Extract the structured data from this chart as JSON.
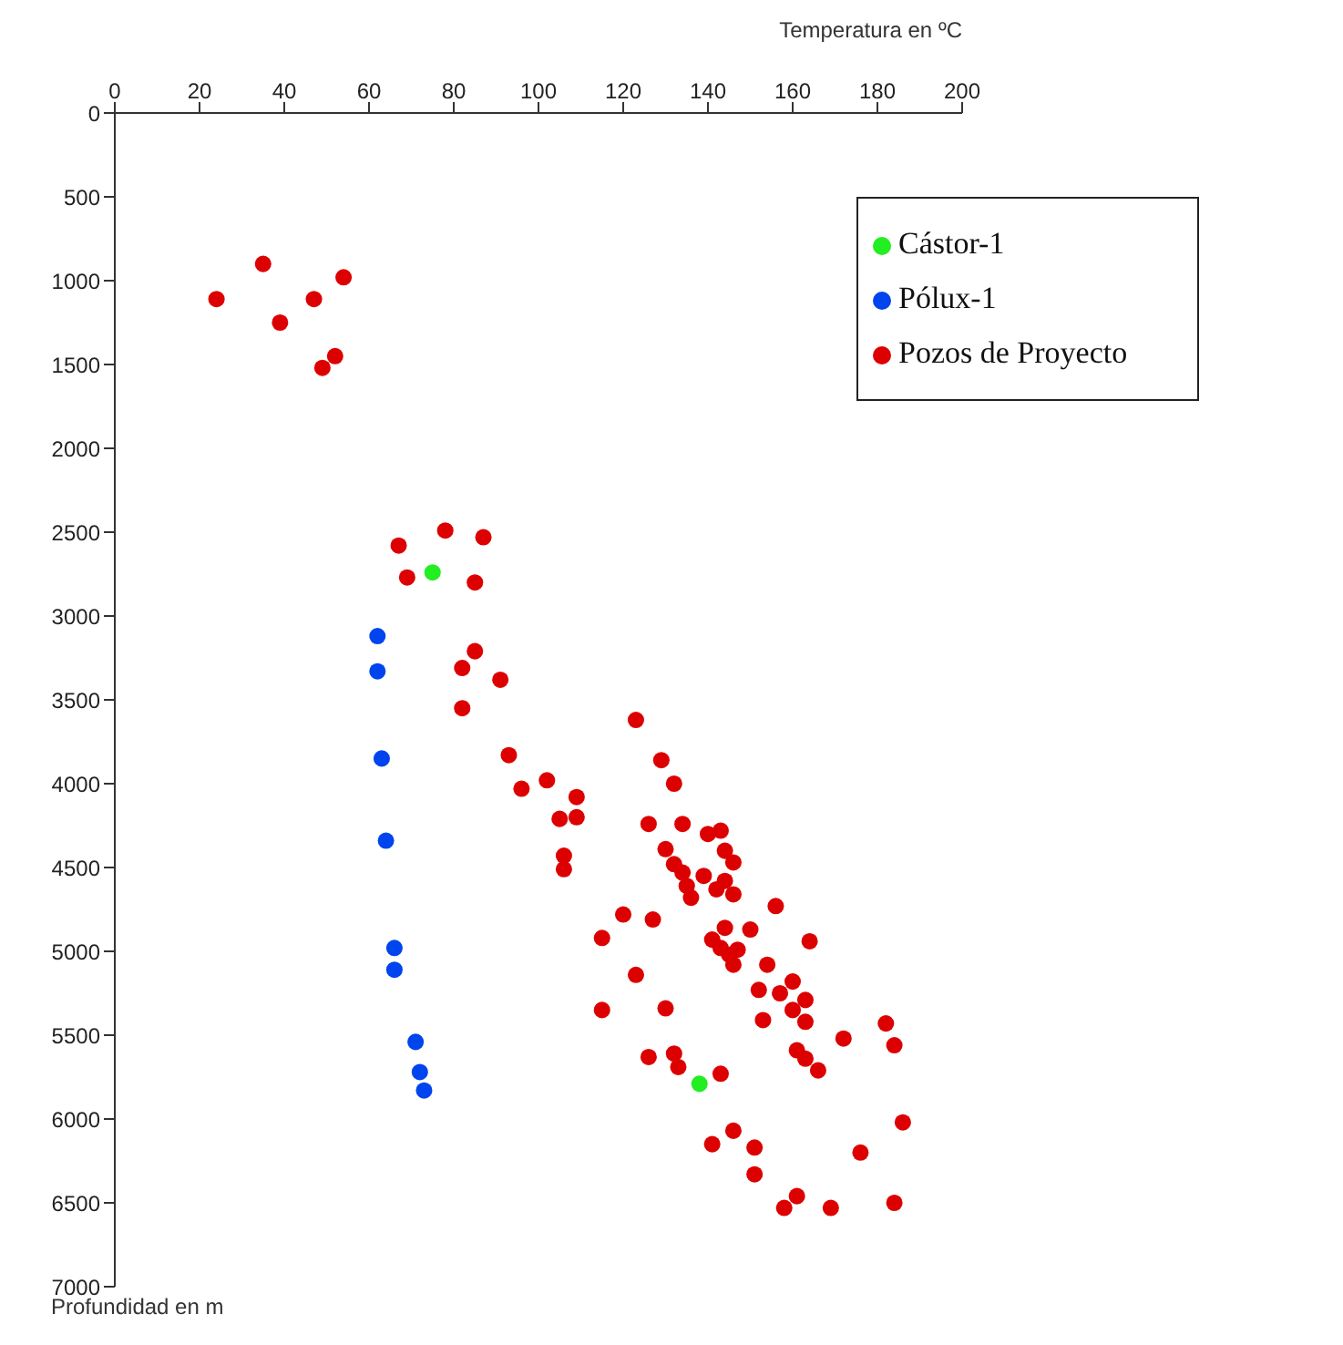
{
  "chart_data": {
    "type": "scatter",
    "xlabel": "Temperatura en ºC",
    "ylabel": "Profundidad en m",
    "xlim": [
      0,
      200
    ],
    "xticks": [
      0,
      20,
      40,
      60,
      80,
      100,
      120,
      140,
      160,
      180,
      200
    ],
    "ylim": [
      7000,
      0
    ],
    "yticks": [
      0,
      500,
      1000,
      1500,
      2000,
      2500,
      3000,
      3500,
      4000,
      4500,
      5000,
      5500,
      6000,
      6500,
      7000
    ],
    "grid": false,
    "legend": "top right",
    "marker": "circle",
    "series": [
      {
        "name": "Cástor-1",
        "color": "#22ee22",
        "x": [
          75,
          138
        ],
        "values": [
          2740,
          5790
        ]
      },
      {
        "name": "Pólux-1",
        "color": "#0044ee",
        "x": [
          62,
          62,
          63,
          64,
          66,
          66,
          71,
          72,
          73
        ],
        "values": [
          3120,
          3330,
          3850,
          4340,
          4980,
          5110,
          5540,
          5720,
          5830
        ]
      },
      {
        "name": "Pozos de Proyecto",
        "color": "#dd0000",
        "x": [
          24,
          35,
          39,
          47,
          54,
          49,
          52,
          67,
          78,
          87,
          69,
          85,
          85,
          82,
          91,
          82,
          123,
          129,
          93,
          96,
          102,
          109,
          105,
          109,
          126,
          130,
          106,
          106,
          120,
          127,
          115,
          123,
          115,
          132,
          134,
          140,
          143,
          144,
          146,
          132,
          134,
          135,
          136,
          139,
          142,
          144,
          146,
          156,
          141,
          144,
          150,
          164,
          143,
          145,
          147,
          146,
          154,
          152,
          157,
          160,
          163,
          160,
          153,
          163,
          130,
          172,
          182,
          184,
          161,
          163,
          166,
          126,
          132,
          133,
          143,
          186,
          146,
          141,
          151,
          151,
          176,
          161,
          158,
          169,
          184
        ],
        "values": [
          1110,
          900,
          1250,
          1110,
          980,
          1520,
          1450,
          2580,
          2490,
          2530,
          2770,
          2800,
          3210,
          3310,
          3380,
          3550,
          3620,
          3860,
          3830,
          4030,
          3980,
          4080,
          4210,
          4200,
          4240,
          4390,
          4430,
          4510,
          4780,
          4810,
          4920,
          5140,
          5350,
          4000,
          4240,
          4300,
          4280,
          4400,
          4470,
          4480,
          4530,
          4610,
          4680,
          4550,
          4630,
          4580,
          4660,
          4730,
          4930,
          4860,
          4870,
          4940,
          4980,
          5020,
          4990,
          5080,
          5080,
          5230,
          5250,
          5180,
          5290,
          5350,
          5410,
          5420,
          5340,
          5520,
          5430,
          5560,
          5590,
          5640,
          5710,
          5630,
          5610,
          5690,
          5730,
          6020,
          6070,
          6150,
          6170,
          6330,
          6200,
          6460,
          6530,
          6530,
          6500
        ]
      }
    ]
  }
}
